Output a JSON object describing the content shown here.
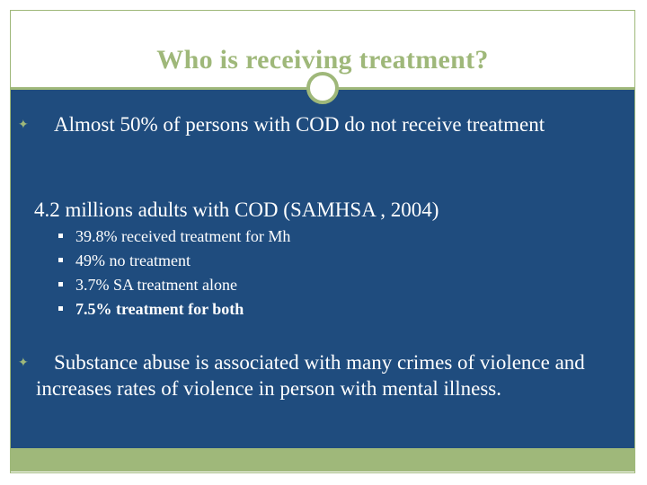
{
  "slide": {
    "title": "Who is receiving treatment?",
    "bullets": [
      {
        "text": "Almost 50% of persons with COD do not receive treatment"
      },
      {
        "text": "4.2 millions adults with COD (SAMHSA , 2004)"
      },
      {
        "text": "Substance abuse is associated with many crimes of violence and increases rates of violence in person with mental illness."
      }
    ],
    "sub_bullets": [
      {
        "text": "39.8% received treatment for Mh"
      },
      {
        "text": "49% no treatment"
      },
      {
        "text": "3.7% SA treatment alone"
      },
      {
        "text": "7.5% treatment for both"
      }
    ]
  },
  "theme": {
    "accent": "#9fb87a",
    "content_background": "#1f4c7e",
    "text_color": "#ffffff"
  }
}
